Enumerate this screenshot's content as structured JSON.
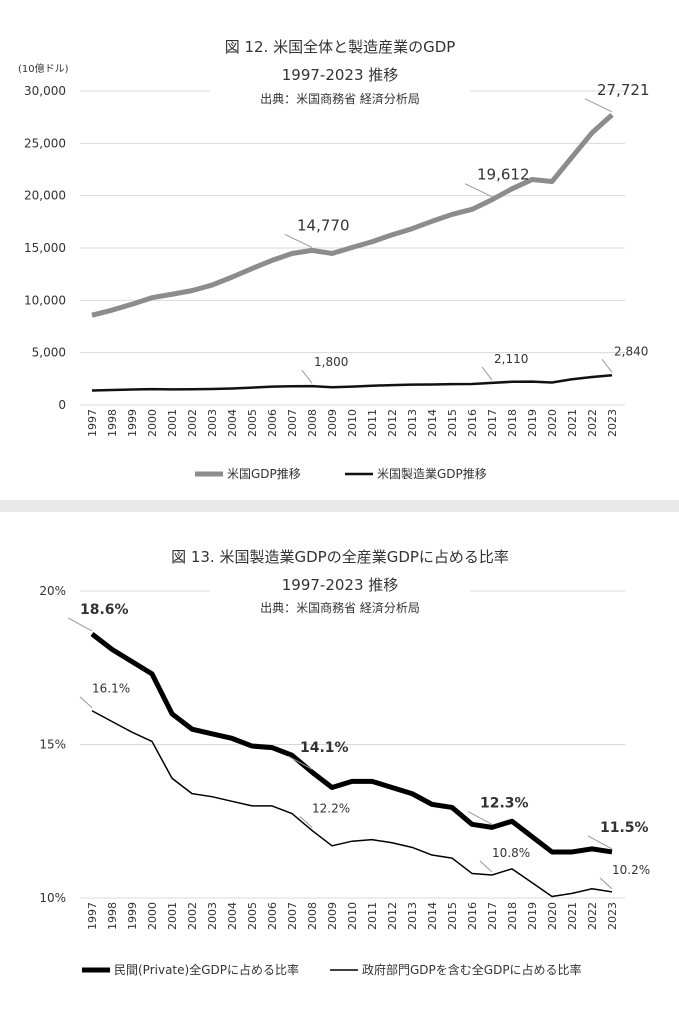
{
  "chart_data": [
    {
      "type": "line",
      "title": "図 12. 米国全体と製造産業のGDP",
      "subtitle": "1997-2023  推移",
      "source": "出典：米国商務省 経済分析局",
      "ylabel": "(10億ドル)",
      "ylim": [
        0,
        30000
      ],
      "yticks": [
        "0",
        "5,000",
        "10,000",
        "15,000",
        "20,000",
        "25,000",
        "30,000"
      ],
      "ytick_values": [
        0,
        5000,
        10000,
        15000,
        20000,
        25000,
        30000
      ],
      "x": [
        1997,
        1998,
        1999,
        2000,
        2001,
        2002,
        2003,
        2004,
        2005,
        2006,
        2007,
        2008,
        2009,
        2010,
        2011,
        2012,
        2013,
        2014,
        2015,
        2016,
        2017,
        2018,
        2019,
        2020,
        2021,
        2022,
        2023
      ],
      "grid": true,
      "legend": "bottom",
      "series": [
        {
          "name": "米国GDP推移",
          "color": "#8c8c8c",
          "width": 5,
          "values": [
            8577,
            9062,
            9631,
            10251,
            10582,
            10929,
            11456,
            12217,
            13039,
            13816,
            14474,
            14770,
            14478,
            15049,
            15600,
            16254,
            16843,
            17551,
            18206,
            18695,
            19612,
            20656,
            21540,
            21354,
            23681,
            26007,
            27721
          ],
          "labels": [
            {
              "year": 2008,
              "text": "14,770"
            },
            {
              "year": 2017,
              "text": "19,612"
            },
            {
              "year": 2023,
              "text": "27,721"
            }
          ]
        },
        {
          "name": "米国製造業GDP推移",
          "color": "#111111",
          "width": 2.5,
          "values": [
            1380,
            1430,
            1480,
            1520,
            1490,
            1500,
            1530,
            1580,
            1660,
            1760,
            1790,
            1800,
            1700,
            1760,
            1840,
            1900,
            1950,
            1960,
            2000,
            2010,
            2110,
            2220,
            2230,
            2150,
            2460,
            2680,
            2840
          ],
          "labels": [
            {
              "year": 2008,
              "text": "1,800"
            },
            {
              "year": 2017,
              "text": "2,110"
            },
            {
              "year": 2023,
              "text": "2,840"
            }
          ]
        }
      ]
    },
    {
      "type": "line",
      "title": "図 13. 米国製造業GDPの全産業GDPに占める比率",
      "subtitle": "1997-2023  推移",
      "source": "出典：米国商務省 経済分析局",
      "ylim": [
        10,
        20
      ],
      "yticks": [
        "10%",
        "15%",
        "20%"
      ],
      "ytick_values": [
        10,
        15,
        20
      ],
      "x": [
        1997,
        1998,
        1999,
        2000,
        2001,
        2002,
        2003,
        2004,
        2005,
        2006,
        2007,
        2008,
        2009,
        2010,
        2011,
        2012,
        2013,
        2014,
        2015,
        2016,
        2017,
        2018,
        2019,
        2020,
        2021,
        2022,
        2023
      ],
      "grid": true,
      "legend": "bottom",
      "series": [
        {
          "name": "民間(Private)全GDPに占める比率",
          "color": "#000000",
          "width": 5,
          "values": [
            18.6,
            18.1,
            17.7,
            17.3,
            16.0,
            15.5,
            15.35,
            15.2,
            14.95,
            14.9,
            14.65,
            14.1,
            13.6,
            13.8,
            13.8,
            13.6,
            13.4,
            13.05,
            12.95,
            12.4,
            12.3,
            12.5,
            12.0,
            11.5,
            11.5,
            11.6,
            11.5
          ],
          "labels": [
            {
              "year": 1997,
              "text": "18.6%"
            },
            {
              "year": 2008,
              "text": "14.1%"
            },
            {
              "year": 2017,
              "text": "12.3%"
            },
            {
              "year": 2023,
              "text": "11.5%"
            }
          ]
        },
        {
          "name": "政府部門GDPを含む全GDPに占める比率",
          "color": "#000000",
          "width": 1.5,
          "values": [
            16.1,
            15.75,
            15.4,
            15.1,
            13.9,
            13.4,
            13.3,
            13.15,
            13.0,
            13.0,
            12.75,
            12.2,
            11.7,
            11.85,
            11.9,
            11.8,
            11.65,
            11.4,
            11.3,
            10.8,
            10.75,
            10.95,
            10.5,
            10.05,
            10.15,
            10.3,
            10.2
          ],
          "labels": [
            {
              "year": 1997,
              "text": "16.1%"
            },
            {
              "year": 2008,
              "text": "12.2%"
            },
            {
              "year": 2017,
              "text": "10.8%"
            },
            {
              "year": 2023,
              "text": "10.2%"
            }
          ]
        }
      ]
    }
  ]
}
